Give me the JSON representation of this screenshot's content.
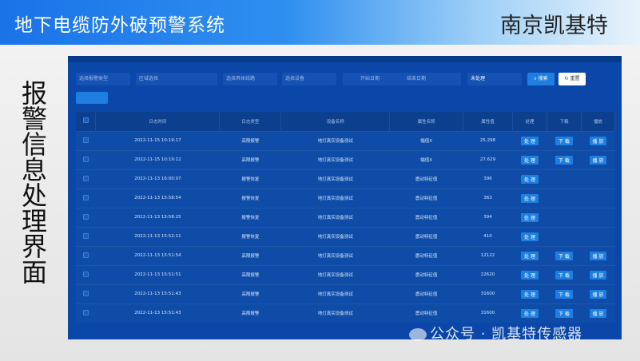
{
  "header": {
    "title": "地下电缆防外破预警系统",
    "brand": "南京凯基特"
  },
  "side_title": "报警信息处理界面",
  "filters": {
    "alarm_type": "选择报警类型",
    "region": "区域选择",
    "line": "选择具体线路",
    "device": "选择设备",
    "start_date": "开始日期",
    "end_date": "结束日期",
    "status": "未处理",
    "search": "搜索",
    "reset": "重置"
  },
  "table": {
    "columns": [
      "日志时间",
      "日志类型",
      "设备名称",
      "属性名称",
      "属性值",
      "处理",
      "下载",
      "播放"
    ],
    "action_labels": {
      "process": "处 理",
      "download": "下 载",
      "play": "播 放"
    },
    "rows": [
      {
        "time": "2022-11-15 10:19:17",
        "type": "高限报警",
        "device": "地灯真实设备测试",
        "attr": "幅值X",
        "value": "25.298",
        "download": true,
        "play": true
      },
      {
        "time": "2022-11-15 10:19:12",
        "type": "高限报警",
        "device": "地灯真实设备测试",
        "attr": "幅值X",
        "value": "27.629",
        "download": true,
        "play": true
      },
      {
        "time": "2022-11-13 16:00:07",
        "type": "报警恢复",
        "device": "地灯真实设备测试",
        "attr": "震动特征值",
        "value": "396",
        "download": false,
        "play": false
      },
      {
        "time": "2022-11-13 15:58:54",
        "type": "报警恢复",
        "device": "地灯真实设备测试",
        "attr": "震动特征值",
        "value": "363",
        "download": false,
        "play": false
      },
      {
        "time": "2022-11-13 15:58:25",
        "type": "报警恢复",
        "device": "地灯真实设备测试",
        "attr": "震动特征值",
        "value": "394",
        "download": false,
        "play": false
      },
      {
        "time": "2022-11-13 15:52:11",
        "type": "报警恢复",
        "device": "地灯真实设备测试",
        "attr": "震动特征值",
        "value": "410",
        "download": false,
        "play": false
      },
      {
        "time": "2022-11-13 15:51:54",
        "type": "高限报警",
        "device": "地灯真实设备测试",
        "attr": "震动特征值",
        "value": "12122",
        "download": true,
        "play": true
      },
      {
        "time": "2022-11-13 15:51:51",
        "type": "高限报警",
        "device": "地灯真实设备测试",
        "attr": "震动特征值",
        "value": "22620",
        "download": true,
        "play": true
      },
      {
        "time": "2022-11-13 15:51:43",
        "type": "高限报警",
        "device": "地灯真实设备测试",
        "attr": "震动特征值",
        "value": "31600",
        "download": true,
        "play": true
      },
      {
        "time": "2022-11-13 15:51:43",
        "type": "高限报警",
        "device": "地灯真实设备测试",
        "attr": "震动特征值",
        "value": "31600",
        "download": true,
        "play": true
      }
    ]
  },
  "watermark": "公众号 · 凯基特传感器",
  "colors": {
    "panel": "#0a47a8",
    "button": "#1e7fe0"
  }
}
